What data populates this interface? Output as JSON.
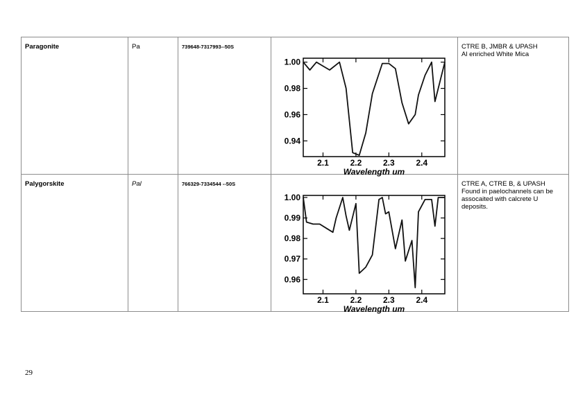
{
  "rows": [
    {
      "name": "Paragonite",
      "abbr": "Pa",
      "coord": "739648-7317993--50S",
      "notes": [
        "CTRE B, JMBR & UPASH",
        "Al enriched  White Mica"
      ]
    },
    {
      "name": "Palygorskite",
      "abbr": "Pal",
      "coord": "766329-7334544 --50S",
      "notes": [
        "CTRE A, CTRE B, & UPASH",
        "Found in paelochannels can be assocaited with calcrete U deposits."
      ]
    }
  ],
  "page_number": "29",
  "chart_data": [
    {
      "type": "line",
      "xlabel": "Wavelength um",
      "ylabel": "",
      "xlim": [
        2.04,
        2.47
      ],
      "ylim": [
        0.928,
        1.003
      ],
      "xticks": [
        "2.1",
        "2.2",
        "2.3",
        "2.4"
      ],
      "yticks": [
        "1.00",
        "0.98",
        "0.96",
        "0.94"
      ],
      "series": [
        {
          "x": [
            2.04,
            2.06,
            2.08,
            2.1,
            2.12,
            2.15,
            2.17,
            2.19,
            2.21,
            2.23,
            2.25,
            2.28,
            2.3,
            2.32,
            2.34,
            2.36,
            2.38,
            2.39,
            2.41,
            2.43,
            2.44,
            2.47
          ],
          "values": [
            1.0,
            0.994,
            1.0,
            0.997,
            0.994,
            1.0,
            0.98,
            0.931,
            0.929,
            0.946,
            0.976,
            0.999,
            0.999,
            0.995,
            0.969,
            0.953,
            0.96,
            0.975,
            0.99,
            1.0,
            0.97,
            1.0
          ]
        }
      ]
    },
    {
      "type": "line",
      "xlabel": "Wavelength um",
      "ylabel": "",
      "xlim": [
        2.04,
        2.47
      ],
      "ylim": [
        0.953,
        1.001
      ],
      "xticks": [
        "2.1",
        "2.2",
        "2.3",
        "2.4"
      ],
      "yticks": [
        "1.00",
        "0.99",
        "0.98",
        "0.97",
        "0.96"
      ],
      "series": [
        {
          "x": [
            2.04,
            2.05,
            2.07,
            2.09,
            2.11,
            2.13,
            2.14,
            2.16,
            2.17,
            2.18,
            2.2,
            2.21,
            2.23,
            2.25,
            2.27,
            2.28,
            2.29,
            2.3,
            2.32,
            2.34,
            2.35,
            2.36,
            2.37,
            2.38,
            2.39,
            2.41,
            2.43,
            2.44,
            2.45,
            2.47
          ],
          "values": [
            1.0,
            0.988,
            0.987,
            0.987,
            0.985,
            0.983,
            0.99,
            1.0,
            0.991,
            0.984,
            0.997,
            0.963,
            0.966,
            0.972,
            0.999,
            1.0,
            0.992,
            0.993,
            0.975,
            0.989,
            0.969,
            0.974,
            0.979,
            0.956,
            0.993,
            0.999,
            0.999,
            0.986,
            1.0,
            1.0
          ]
        }
      ]
    }
  ]
}
